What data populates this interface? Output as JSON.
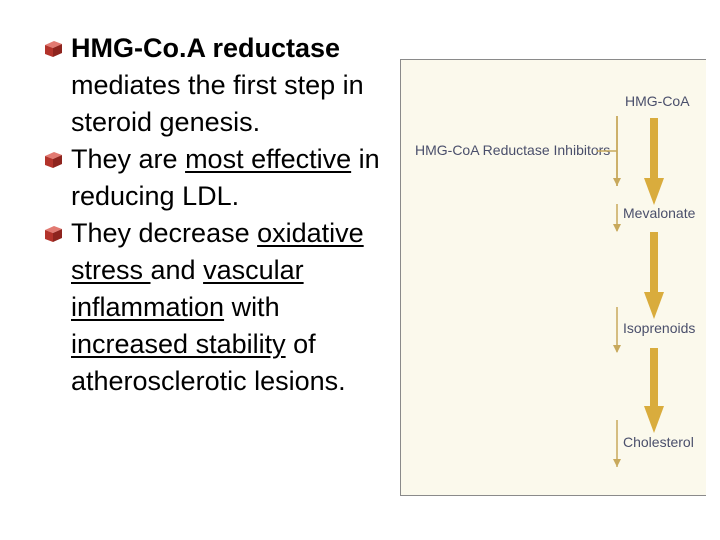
{
  "slide": {
    "bullets": [
      {
        "segments": [
          {
            "text": "HMG-Co.A reductase",
            "style": "bold"
          },
          {
            "text": " mediates the first step in steroid genesis.",
            "style": "plain"
          }
        ]
      },
      {
        "segments": [
          {
            "text": "They are ",
            "style": "plain"
          },
          {
            "text": "most effective",
            "style": "underline"
          },
          {
            "text": " in reducing LDL.",
            "style": "plain"
          }
        ]
      },
      {
        "segments": [
          {
            "text": "They decrease ",
            "style": "plain"
          },
          {
            "text": "oxidative stress ",
            "style": "underline"
          },
          {
            "text": "and ",
            "style": "plain"
          },
          {
            "text": "vascular inflammation",
            "style": "underline"
          },
          {
            "text": " with ",
            "style": "plain"
          },
          {
            "text": "increased stability",
            "style": "underline"
          },
          {
            "text": " of atherosclerotic lesions.",
            "style": "plain"
          }
        ]
      }
    ],
    "bullet_icon": "red-cube-bullet-icon",
    "bullet_color": "#c0392b"
  },
  "diagram": {
    "inhibitor_label": "HMG-CoA Reductase Inhibitors",
    "steps": [
      "HMG-CoA",
      "Mevalonate",
      "Isoprenoids",
      "Cholesterol"
    ],
    "arrow_color": "#d9ac3d",
    "inhibit_tick_color": "#c8a95c",
    "panel_color": "#fbf9ec"
  }
}
